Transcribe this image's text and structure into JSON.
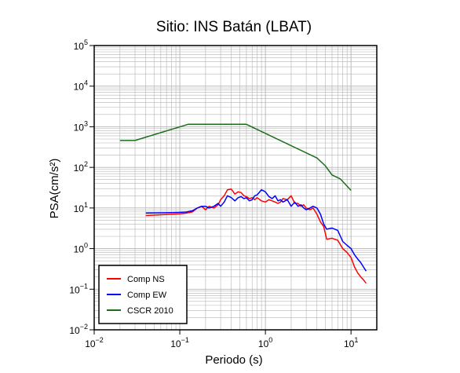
{
  "chart_data": {
    "type": "line",
    "title": "Sitio: INS Batán (LBAT)",
    "xlabel": "Periodo (s)",
    "ylabel": "PSA(cm/s²)",
    "xscale": "log",
    "yscale": "log",
    "xlim": [
      0.01,
      20
    ],
    "ylim": [
      0.01,
      100000
    ],
    "grid": true,
    "legend_position": "bottom-left",
    "x_ticks": [
      {
        "base": "10",
        "exp": "−2",
        "value": 0.01
      },
      {
        "base": "10",
        "exp": "−1",
        "value": 0.1
      },
      {
        "base": "10",
        "exp": "0",
        "value": 1
      },
      {
        "base": "10",
        "exp": "1",
        "value": 10
      }
    ],
    "y_ticks": [
      {
        "base": "10",
        "exp": "−2",
        "value": 0.01
      },
      {
        "base": "10",
        "exp": "−1",
        "value": 0.1
      },
      {
        "base": "10",
        "exp": "0",
        "value": 1
      },
      {
        "base": "10",
        "exp": "1",
        "value": 10
      },
      {
        "base": "10",
        "exp": "2",
        "value": 100
      },
      {
        "base": "10",
        "exp": "3",
        "value": 1000
      },
      {
        "base": "10",
        "exp": "4",
        "value": 10000
      },
      {
        "base": "10",
        "exp": "5",
        "value": 100000
      }
    ],
    "series": [
      {
        "name": "Comp NS",
        "color": "#ff0000",
        "x": [
          0.04,
          0.06,
          0.08,
          0.1,
          0.12,
          0.14,
          0.16,
          0.18,
          0.2,
          0.22,
          0.25,
          0.28,
          0.3,
          0.33,
          0.36,
          0.4,
          0.44,
          0.48,
          0.52,
          0.56,
          0.6,
          0.65,
          0.7,
          0.75,
          0.8,
          0.9,
          1.0,
          1.1,
          1.2,
          1.3,
          1.4,
          1.5,
          1.6,
          1.8,
          2.0,
          2.2,
          2.4,
          2.6,
          2.8,
          3.0,
          3.3,
          3.6,
          4.0,
          4.4,
          4.8,
          5.2,
          6.0,
          7.0,
          8.0,
          9.0,
          10,
          11,
          12,
          13,
          14,
          15
        ],
        "y": [
          6.5,
          6.8,
          7.0,
          7.2,
          7.5,
          8.0,
          10,
          11,
          9,
          11,
          10,
          12,
          16,
          20,
          28,
          29,
          22,
          25,
          24,
          20,
          19,
          17,
          18,
          16,
          18,
          15,
          14,
          16,
          15,
          14,
          13,
          14,
          17,
          16,
          20,
          13,
          13,
          11,
          12,
          10,
          9,
          10,
          7,
          4.5,
          3.5,
          1.7,
          1.8,
          1.6,
          1.0,
          0.8,
          0.6,
          0.35,
          0.25,
          0.2,
          0.17,
          0.14
        ]
      },
      {
        "name": "Comp EW",
        "color": "#0000ff",
        "x": [
          0.04,
          0.06,
          0.08,
          0.1,
          0.12,
          0.14,
          0.16,
          0.18,
          0.2,
          0.22,
          0.25,
          0.28,
          0.3,
          0.33,
          0.36,
          0.4,
          0.44,
          0.48,
          0.52,
          0.56,
          0.6,
          0.65,
          0.7,
          0.75,
          0.8,
          0.9,
          1.0,
          1.1,
          1.2,
          1.3,
          1.4,
          1.5,
          1.6,
          1.8,
          2.0,
          2.2,
          2.4,
          2.6,
          2.8,
          3.0,
          3.3,
          3.6,
          4.0,
          4.4,
          4.8,
          5.2,
          6.0,
          7.0,
          8.0,
          9.0,
          10,
          11,
          12,
          13,
          14,
          15
        ],
        "y": [
          7.5,
          7.6,
          7.7,
          7.8,
          8.0,
          8.5,
          10,
          11,
          11,
          10,
          11,
          13,
          11,
          14,
          20,
          18,
          15,
          18,
          19,
          17,
          18,
          15,
          16,
          20,
          21,
          28,
          25,
          19,
          17,
          20,
          15,
          16,
          14,
          16,
          11,
          14,
          11,
          12,
          10,
          9,
          10,
          11,
          10,
          7,
          4,
          3,
          3.2,
          2.8,
          1.5,
          1.2,
          1.0,
          0.7,
          0.55,
          0.45,
          0.35,
          0.28
        ]
      },
      {
        "name": "CSCR 2010",
        "color": "#1a6e1a",
        "x": [
          0.02,
          0.03,
          0.125,
          0.6,
          4.0,
          5.0,
          6.0,
          7.5,
          10
        ],
        "y": [
          460,
          460,
          1150,
          1150,
          170,
          110,
          65,
          52,
          27
        ]
      }
    ]
  }
}
